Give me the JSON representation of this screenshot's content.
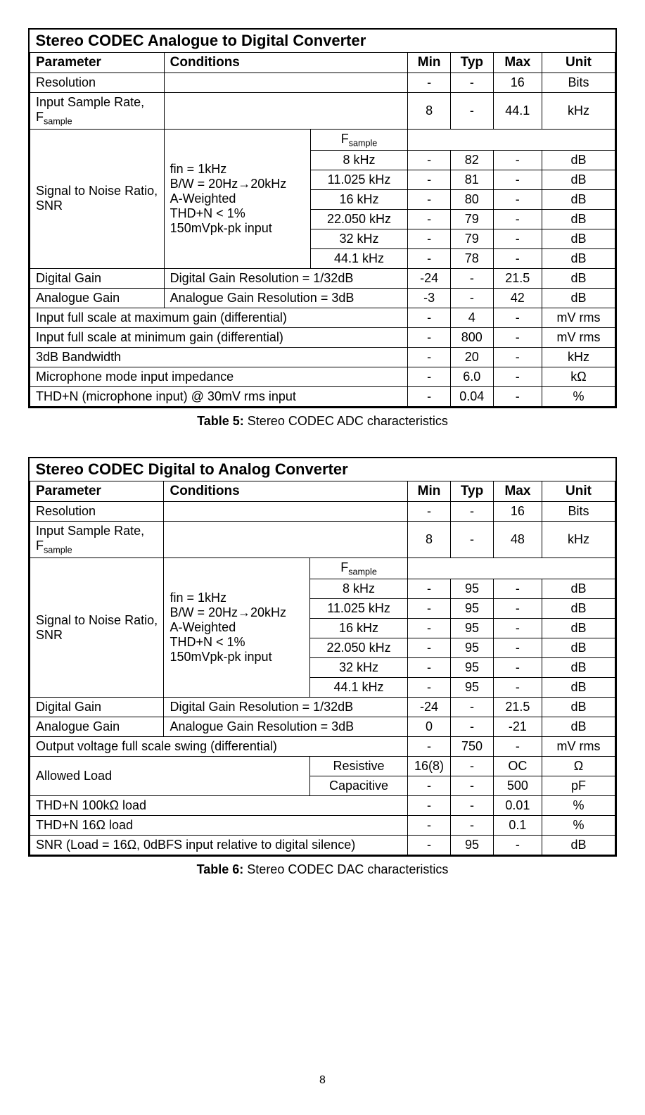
{
  "col_headers": {
    "param": "Parameter",
    "cond": "Conditions",
    "min": "Min",
    "typ": "Typ",
    "max": "Max",
    "unit": "Unit"
  },
  "table5": {
    "title": "Stereo CODEC Analogue to Digital Converter",
    "caption_label": "Table 5:",
    "caption_text": " Stereo CODEC ADC characteristics",
    "rows": {
      "resolution": {
        "param": "Resolution",
        "min": "-",
        "typ": "-",
        "max": "16",
        "unit": "Bits"
      },
      "fsample_param": "Input Sample Rate, F",
      "fsample_sub": "sample",
      "fsample_row": {
        "min": "8",
        "typ": "-",
        "max": "44.1",
        "unit": "kHz"
      },
      "snr_param": "Signal to Noise Ratio, SNR",
      "snr_cond_lines": "fin = 1kHz\nB/W = 20Hz→20kHz\nA-Weighted\nTHD+N < 1%\n150mVpk-pk input",
      "fsample_header": "F",
      "snr": [
        {
          "f": "8 kHz",
          "min": "-",
          "typ": "82",
          "max": "-",
          "unit": "dB"
        },
        {
          "f": "11.025 kHz",
          "min": "-",
          "typ": "81",
          "max": "-",
          "unit": "dB"
        },
        {
          "f": "16 kHz",
          "min": "-",
          "typ": "80",
          "max": "-",
          "unit": "dB"
        },
        {
          "f": "22.050 kHz",
          "min": "-",
          "typ": "79",
          "max": "-",
          "unit": "dB"
        },
        {
          "f": "32 kHz",
          "min": "-",
          "typ": "79",
          "max": "-",
          "unit": "dB"
        },
        {
          "f": "44.1 kHz",
          "min": "-",
          "typ": "78",
          "max": "-",
          "unit": "dB"
        }
      ],
      "digital_gain": {
        "param": "Digital Gain",
        "cond": "Digital Gain Resolution = 1/32dB",
        "min": "-24",
        "typ": "-",
        "max": "21.5",
        "unit": "dB"
      },
      "analogue_gain": {
        "param": "Analogue Gain",
        "cond": "Analogue Gain Resolution = 3dB",
        "min": "-3",
        "typ": "-",
        "max": "42",
        "unit": "dB"
      },
      "fs_max": {
        "param": "Input full scale at maximum gain (differential)",
        "min": "-",
        "typ": "4",
        "max": "-",
        "unit": "mV rms"
      },
      "fs_min": {
        "param": "Input full scale at minimum gain (differential)",
        "min": "-",
        "typ": "800",
        "max": "-",
        "unit": "mV rms"
      },
      "bw": {
        "param": "3dB Bandwidth",
        "min": "-",
        "typ": "20",
        "max": "-",
        "unit": "kHz"
      },
      "mic_imp": {
        "param": "Microphone mode input impedance",
        "min": "-",
        "typ": "6.0",
        "max": "-",
        "unit": "kΩ"
      },
      "thd": {
        "param": "THD+N (microphone input) @ 30mV rms input",
        "min": "-",
        "typ": "0.04",
        "max": "-",
        "unit": "%"
      }
    }
  },
  "table6": {
    "title": "Stereo CODEC Digital to Analog Converter",
    "caption_label": "Table 6:",
    "caption_text": " Stereo CODEC DAC characteristics",
    "rows": {
      "resolution": {
        "param": "Resolution",
        "min": "-",
        "typ": "-",
        "max": "16",
        "unit": "Bits"
      },
      "fsample_param": "Input Sample Rate, F",
      "fsample_sub": "sample",
      "fsample_row": {
        "min": "8",
        "typ": "-",
        "max": "48",
        "unit": "kHz"
      },
      "snr_param": "Signal to Noise Ratio, SNR",
      "snr_cond_lines": "fin = 1kHz\nB/W = 20Hz→20kHz\nA-Weighted\nTHD+N < 1%\n150mVpk-pk input",
      "fsample_header": "F",
      "snr": [
        {
          "f": "8 kHz",
          "min": "-",
          "typ": "95",
          "max": "-",
          "unit": "dB"
        },
        {
          "f": "11.025 kHz",
          "min": "-",
          "typ": "95",
          "max": "-",
          "unit": "dB"
        },
        {
          "f": "16 kHz",
          "min": "-",
          "typ": "95",
          "max": "-",
          "unit": "dB"
        },
        {
          "f": "22.050 kHz",
          "min": "-",
          "typ": "95",
          "max": "-",
          "unit": "dB"
        },
        {
          "f": "32 kHz",
          "min": "-",
          "typ": "95",
          "max": "-",
          "unit": "dB"
        },
        {
          "f": "44.1 kHz",
          "min": "-",
          "typ": "95",
          "max": "-",
          "unit": "dB"
        }
      ],
      "digital_gain": {
        "param": "Digital Gain",
        "cond": "Digital Gain Resolution = 1/32dB",
        "min": "-24",
        "typ": "-",
        "max": "21.5",
        "unit": "dB"
      },
      "analogue_gain": {
        "param": "Analogue Gain",
        "cond": "Analogue Gain Resolution = 3dB",
        "min": "0",
        "typ": "-",
        "max": "-21",
        "unit": "dB"
      },
      "out_swing": {
        "param": "Output voltage full scale swing (differential)",
        "min": "-",
        "typ": "750",
        "max": "-",
        "unit": "mV rms"
      },
      "load_param": "Allowed Load",
      "load_res": {
        "sub": "Resistive",
        "min": "16(8)",
        "typ": "-",
        "max": "OC",
        "unit": "Ω"
      },
      "load_cap": {
        "sub": "Capacitive",
        "min": "-",
        "typ": "-",
        "max": "500",
        "unit": "pF"
      },
      "thd100": {
        "param": "THD+N 100kΩ load",
        "min": "-",
        "typ": "-",
        "max": "0.01",
        "unit": "%"
      },
      "thd16": {
        "param": "THD+N 16Ω load",
        "min": "-",
        "typ": "-",
        "max": "0.1",
        "unit": "%"
      },
      "snr16": {
        "param": "SNR (Load = 16Ω, 0dBFS input relative to digital silence)",
        "min": "-",
        "typ": "95",
        "max": "-",
        "unit": "dB"
      }
    }
  },
  "page_number": "8"
}
